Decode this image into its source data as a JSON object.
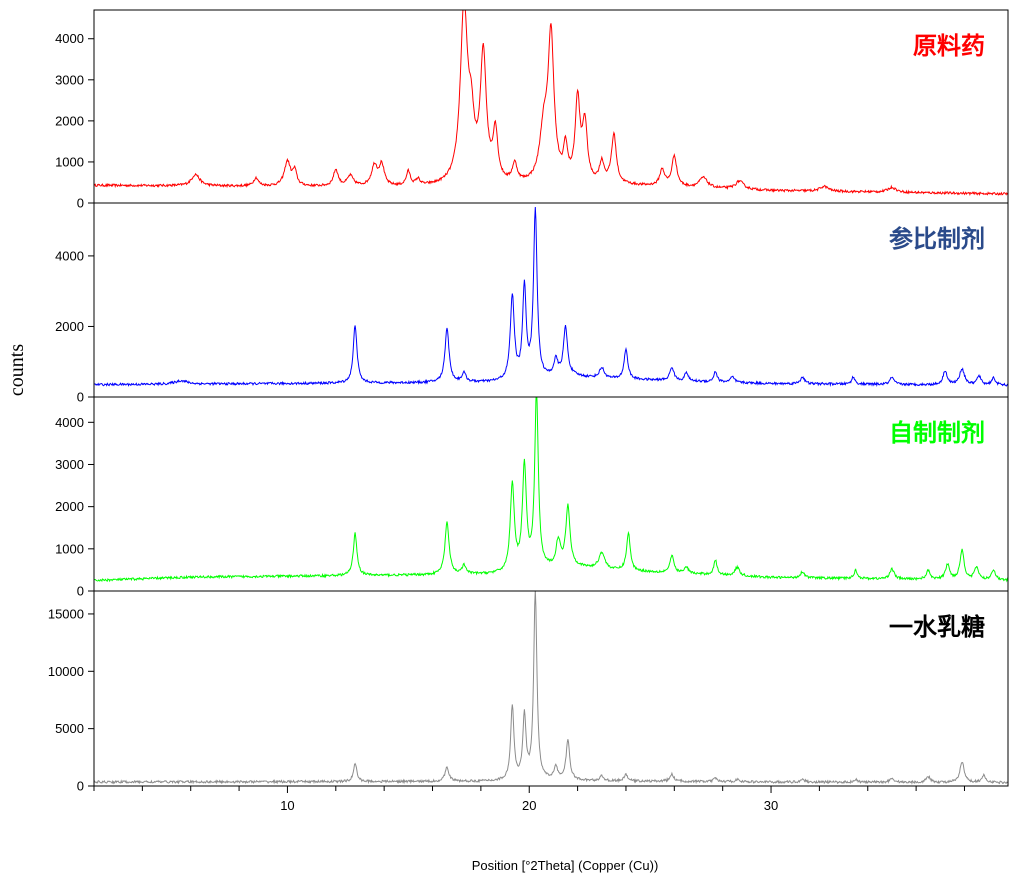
{
  "chart_data": {
    "type": "line",
    "xlabel": "Position [°2Theta] (Copper (Cu))",
    "ylabel": "counts",
    "xlim": [
      2,
      39.8
    ],
    "x_ticks": [
      10,
      20,
      30
    ],
    "grid": false,
    "panels": [
      {
        "name": "原料药",
        "color": "#ff0000",
        "ylim": [
          0,
          4700
        ],
        "y_ticks": [
          0,
          1000,
          2000,
          3000,
          4000
        ],
        "baseline": [
          [
            2,
            430
          ],
          [
            15,
            380
          ],
          [
            24,
            420
          ],
          [
            30,
            300
          ],
          [
            39.8,
            220
          ]
        ],
        "peaks": [
          [
            6.2,
            280,
            0.2
          ],
          [
            8.7,
            200,
            0.12
          ],
          [
            10.0,
            600,
            0.15
          ],
          [
            10.3,
            350,
            0.1
          ],
          [
            12.0,
            400,
            0.12
          ],
          [
            12.6,
            250,
            0.15
          ],
          [
            13.6,
            500,
            0.15
          ],
          [
            13.9,
            500,
            0.12
          ],
          [
            15.0,
            350,
            0.1
          ],
          [
            15.4,
            150,
            0.1
          ],
          [
            17.3,
            4200,
            0.18
          ],
          [
            17.6,
            1200,
            0.15
          ],
          [
            18.1,
            3100,
            0.15
          ],
          [
            18.6,
            1200,
            0.12
          ],
          [
            19.4,
            450,
            0.12
          ],
          [
            20.6,
            1200,
            0.2
          ],
          [
            20.9,
            3500,
            0.15
          ],
          [
            21.5,
            800,
            0.1
          ],
          [
            22.0,
            2000,
            0.12
          ],
          [
            22.3,
            1400,
            0.12
          ],
          [
            23.0,
            500,
            0.12
          ],
          [
            23.5,
            1200,
            0.12
          ],
          [
            25.5,
            400,
            0.12
          ],
          [
            26.0,
            750,
            0.12
          ],
          [
            27.2,
            250,
            0.2
          ],
          [
            28.7,
            200,
            0.2
          ],
          [
            32.2,
            120,
            0.2
          ],
          [
            35.0,
            120,
            0.2
          ]
        ]
      },
      {
        "name": "参比制剂",
        "color": "#0000ff",
        "ylim": [
          0,
          5500
        ],
        "y_ticks": [
          0,
          2000,
          4000
        ],
        "baseline": [
          [
            2,
            350
          ],
          [
            20,
            420
          ],
          [
            21.5,
            600
          ],
          [
            23,
            520
          ],
          [
            30,
            380
          ],
          [
            39.8,
            330
          ]
        ],
        "peaks": [
          [
            5.6,
            100,
            0.3
          ],
          [
            12.8,
            1650,
            0.09
          ],
          [
            16.6,
            1550,
            0.1
          ],
          [
            17.3,
            250,
            0.1
          ],
          [
            19.3,
            2400,
            0.1
          ],
          [
            19.8,
            2600,
            0.09
          ],
          [
            20.25,
            4800,
            0.09
          ],
          [
            21.1,
            450,
            0.1
          ],
          [
            21.5,
            1350,
            0.1
          ],
          [
            23.0,
            300,
            0.12
          ],
          [
            24.0,
            850,
            0.09
          ],
          [
            25.9,
            380,
            0.1
          ],
          [
            26.5,
            250,
            0.08
          ],
          [
            27.7,
            300,
            0.08
          ],
          [
            28.4,
            150,
            0.1
          ],
          [
            31.3,
            200,
            0.1
          ],
          [
            33.4,
            200,
            0.08
          ],
          [
            35.0,
            200,
            0.1
          ],
          [
            37.2,
            400,
            0.1
          ],
          [
            37.9,
            450,
            0.12
          ],
          [
            38.6,
            250,
            0.1
          ],
          [
            39.2,
            200,
            0.1
          ]
        ]
      },
      {
        "name": "自制制剂",
        "color": "#00ff00",
        "ylim": [
          0,
          4600
        ],
        "y_ticks": [
          0,
          1000,
          2000,
          3000,
          4000
        ],
        "baseline": [
          [
            2,
            250
          ],
          [
            6,
            330
          ],
          [
            20,
            400
          ],
          [
            21.5,
            600
          ],
          [
            23,
            500
          ],
          [
            30,
            320
          ],
          [
            39.8,
            250
          ]
        ],
        "peaks": [
          [
            12.8,
            1000,
            0.09
          ],
          [
            16.6,
            1250,
            0.1
          ],
          [
            17.3,
            200,
            0.1
          ],
          [
            19.3,
            2100,
            0.1
          ],
          [
            19.8,
            2500,
            0.1
          ],
          [
            20.3,
            4200,
            0.09
          ],
          [
            21.2,
            600,
            0.1
          ],
          [
            21.6,
            1400,
            0.1
          ],
          [
            23.0,
            400,
            0.15
          ],
          [
            24.1,
            900,
            0.09
          ],
          [
            25.9,
            400,
            0.1
          ],
          [
            26.5,
            150,
            0.1
          ],
          [
            27.7,
            350,
            0.08
          ],
          [
            28.6,
            200,
            0.12
          ],
          [
            31.3,
            150,
            0.1
          ],
          [
            33.5,
            200,
            0.08
          ],
          [
            35.0,
            250,
            0.1
          ],
          [
            36.5,
            200,
            0.1
          ],
          [
            37.3,
            350,
            0.1
          ],
          [
            37.9,
            700,
            0.1
          ],
          [
            38.5,
            300,
            0.1
          ],
          [
            39.2,
            250,
            0.1
          ]
        ]
      },
      {
        "name": "一水乳糖",
        "color": "#8c8c8c",
        "ylim": [
          0,
          17000
        ],
        "y_ticks": [
          0,
          5000,
          10000,
          15000
        ],
        "baseline": [
          [
            2,
            350
          ],
          [
            18,
            400
          ],
          [
            22,
            450
          ],
          [
            30,
            350
          ],
          [
            39.8,
            300
          ]
        ],
        "peaks": [
          [
            12.8,
            1600,
            0.08
          ],
          [
            16.6,
            1300,
            0.09
          ],
          [
            19.3,
            6500,
            0.08
          ],
          [
            19.8,
            5500,
            0.08
          ],
          [
            20.25,
            16500,
            0.08
          ],
          [
            21.1,
            1200,
            0.09
          ],
          [
            21.6,
            3500,
            0.09
          ],
          [
            23.0,
            400,
            0.1
          ],
          [
            24.0,
            600,
            0.08
          ],
          [
            25.9,
            600,
            0.1
          ],
          [
            27.7,
            300,
            0.08
          ],
          [
            28.6,
            200,
            0.1
          ],
          [
            31.3,
            250,
            0.1
          ],
          [
            33.5,
            250,
            0.08
          ],
          [
            35.0,
            350,
            0.1
          ],
          [
            36.5,
            500,
            0.1
          ],
          [
            37.9,
            1800,
            0.1
          ],
          [
            38.8,
            600,
            0.1
          ]
        ]
      }
    ]
  }
}
